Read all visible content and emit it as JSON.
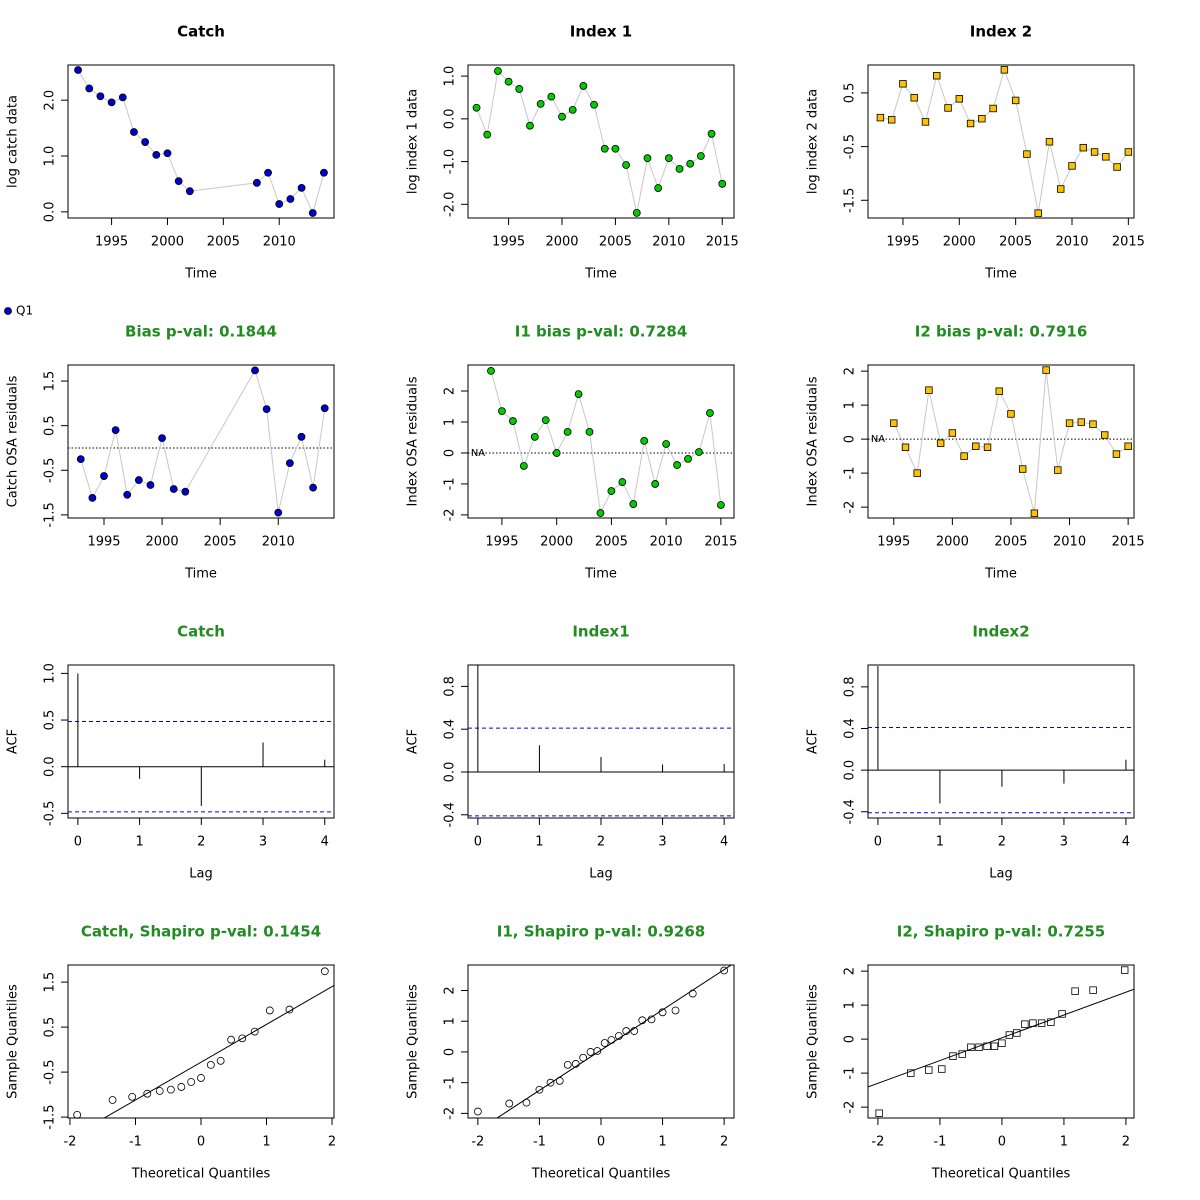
{
  "chart_data": [
    {
      "type": "line",
      "marker": "circle",
      "title": "Catch",
      "title_color": "#000000",
      "x_label": "Time",
      "y_label": "log catch data",
      "x": [
        1992,
        1993,
        1994,
        1995,
        1996,
        1997,
        1998,
        1999,
        2000,
        2001,
        2002,
        2008,
        2009,
        2010,
        2011,
        2012,
        2013,
        2014
      ],
      "series": [
        {
          "name": "Q1",
          "color": "#0000cd",
          "values": [
            2.54,
            2.21,
            2.07,
            1.96,
            2.05,
            1.43,
            1.25,
            1.02,
            1.05,
            0.55,
            0.37,
            0.52,
            0.7,
            0.14,
            0.23,
            0.43,
            -0.02,
            0.7
          ]
        }
      ],
      "xlim": [
        1991.1,
        2014.9
      ],
      "xticks": [
        1995,
        2000,
        2005,
        2010
      ],
      "ylim": [
        -0.11,
        2.63
      ],
      "yticks": [
        {
          "value": 0,
          "label": "0.0"
        },
        {
          "value": 1,
          "label": "1.0"
        },
        {
          "value": 2,
          "label": "2.0"
        }
      ]
    },
    {
      "type": "line",
      "marker": "circle",
      "title": "Index 1",
      "title_color": "#000000",
      "x_label": "Time",
      "y_label": "log index 1 data",
      "x": [
        1992,
        1993,
        1994,
        1995,
        1996,
        1997,
        1998,
        1999,
        2000,
        2001,
        2002,
        2003,
        2004,
        2005,
        2006,
        2007,
        2008,
        2009,
        2010,
        2011,
        2012,
        2013,
        2014,
        2015
      ],
      "color": "#00cd00",
      "values": [
        0.26,
        -0.37,
        1.12,
        0.87,
        0.7,
        -0.16,
        0.35,
        0.52,
        0.05,
        0.21,
        0.77,
        0.33,
        -0.7,
        -0.7,
        -1.08,
        -2.2,
        -0.92,
        -1.62,
        -0.92,
        -1.17,
        -1.05,
        -0.87,
        -0.35,
        -1.52
      ],
      "xlim": [
        1991.2,
        2016.1
      ],
      "xticks": [
        1995,
        2000,
        2005,
        2010,
        2015
      ],
      "ylim": [
        -2.32,
        1.26
      ],
      "yticks": [
        {
          "value": 1,
          "label": "1.0"
        },
        {
          "value": 0,
          "label": "0.0"
        },
        {
          "value": -1,
          "label": "-1.0"
        },
        {
          "value": -2,
          "label": "-2.0"
        }
      ]
    },
    {
      "type": "line",
      "marker": "square",
      "title": "Index 2",
      "title_color": "#000000",
      "x_label": "Time",
      "y_label": "log index 2 data",
      "x": [
        1993,
        1994,
        1995,
        1996,
        1997,
        1998,
        1999,
        2000,
        2001,
        2002,
        2003,
        2004,
        2005,
        2006,
        2007,
        2008,
        2009,
        2010,
        2011,
        2012,
        2013,
        2014,
        2015
      ],
      "color": "#ffc200",
      "values": [
        0.04,
        0,
        0.67,
        0.41,
        -0.04,
        0.82,
        0.22,
        0.39,
        -0.07,
        0.02,
        0.21,
        0.93,
        0.36,
        -0.64,
        -1.74,
        -0.41,
        -1.29,
        -0.86,
        -0.52,
        -0.6,
        -0.69,
        -0.88,
        -0.6
      ],
      "xlim": [
        1991.9,
        2015.5
      ],
      "xticks": [
        1995,
        2000,
        2005,
        2010,
        2015
      ],
      "ylim": [
        -1.83,
        1.02
      ],
      "yticks": [
        0.5,
        -0.5,
        -1.5
      ]
    },
    {
      "type": "line",
      "marker": "circle",
      "zero_line": true,
      "title": "Bias p-val: 0.1844",
      "title_color": "#228b22",
      "x_label": "Time",
      "y_label": "Catch OSA residuals",
      "x": [
        1993,
        1994,
        1995,
        1996,
        1997,
        1998,
        1999,
        2000,
        2001,
        2002,
        2008,
        2009,
        2010,
        2011,
        2012,
        2013,
        2014
      ],
      "color": "#0000cd",
      "values": [
        -0.25,
        -1.12,
        -0.63,
        0.4,
        -1.05,
        -0.72,
        -0.83,
        0.22,
        -0.92,
        -0.98,
        1.74,
        0.87,
        -1.45,
        -0.34,
        0.25,
        -0.89,
        0.89
      ],
      "xlim": [
        1991.9,
        2014.8
      ],
      "xticks": [
        1995,
        2000,
        2005,
        2010
      ],
      "ylim": [
        -1.57,
        1.86
      ],
      "yticks": [
        1.5,
        0.5,
        -0.5,
        -1.5
      ]
    },
    {
      "type": "line",
      "marker": "circle",
      "zero_line": true,
      "annotations": [
        "NA"
      ],
      "title": "I1 bias p-val: 0.7284",
      "title_color": "#228b22",
      "x_label": "Time",
      "y_label": "Index OSA residuals",
      "x": [
        1994,
        1995,
        1996,
        1997,
        1998,
        1999,
        2000,
        2001,
        2002,
        2003,
        2004,
        2005,
        2006,
        2007,
        2008,
        2009,
        2010,
        2011,
        2012,
        2013,
        2014,
        2015
      ],
      "color": "#00cd00",
      "values": [
        2.65,
        1.35,
        1.03,
        -0.42,
        0.52,
        1.06,
        0,
        0.68,
        1.9,
        0.68,
        -1.94,
        -1.23,
        -0.94,
        -1.65,
        0.39,
        -1.0,
        0.29,
        -0.39,
        -0.19,
        0.03,
        1.29,
        -1.68
      ],
      "xlim": [
        1991.9,
        2016.2
      ],
      "xticks": [
        1995,
        2000,
        2005,
        2010,
        2015
      ],
      "ylim": [
        -2.1,
        2.84
      ],
      "yticks": [
        2,
        1,
        0,
        -1,
        -2
      ]
    },
    {
      "type": "line",
      "marker": "square",
      "zero_line": true,
      "annotations": [
        "NA"
      ],
      "title": "I2 bias p-val: 0.7916",
      "title_color": "#228b22",
      "x_label": "Time",
      "y_label": "Index OSA residuals",
      "x": [
        1995,
        1996,
        1997,
        1998,
        1999,
        2000,
        2001,
        2002,
        2003,
        2004,
        2005,
        2006,
        2007,
        2008,
        2009,
        2010,
        2011,
        2012,
        2013,
        2014,
        2015
      ],
      "color": "#ffc200",
      "values": [
        0.47,
        -0.24,
        -1.0,
        1.44,
        -0.12,
        0.18,
        -0.5,
        -0.21,
        -0.24,
        1.41,
        0.74,
        -0.88,
        -2.18,
        2.03,
        -0.91,
        0.47,
        0.5,
        0.44,
        0.12,
        -0.44,
        -0.21
      ],
      "xlim": [
        1992.8,
        2015.5
      ],
      "xticks": [
        1995,
        2000,
        2005,
        2010,
        2015
      ],
      "ylim": [
        -2.32,
        2.18
      ],
      "yticks": [
        2,
        1,
        0,
        -1,
        -2
      ]
    },
    {
      "type": "acf",
      "title": "Catch",
      "title_color": "#228b22",
      "x_label": "Lag",
      "y_label": "ACF",
      "x": [
        0,
        1,
        2,
        3,
        4
      ],
      "values": [
        1.0,
        -0.13,
        -0.42,
        0.26,
        0.075
      ],
      "ci": 0.485,
      "ci_color": "#0000ff",
      "xlim": [
        -0.16,
        4.15
      ],
      "xticks": [
        0,
        1,
        2,
        3,
        4
      ],
      "ylim": [
        -0.55,
        1.09
      ],
      "yticks": [
        {
          "value": 1,
          "label": "1.0"
        },
        0.5,
        {
          "value": 0,
          "label": "0.0"
        },
        -0.5
      ]
    },
    {
      "type": "acf",
      "title": "Index1",
      "title_color": "#228b22",
      "x_label": "Lag",
      "y_label": "ACF",
      "x": [
        0,
        1,
        2,
        3,
        4
      ],
      "values": [
        1.0,
        0.25,
        0.14,
        0.07,
        0.075
      ],
      "ci": 0.41,
      "ci_color": "#0000ff",
      "xlim": [
        -0.16,
        4.16
      ],
      "xticks": [
        0,
        1,
        2,
        3,
        4
      ],
      "ylim": [
        -0.43,
        1.0
      ],
      "yticks": [
        0.8,
        0.4,
        {
          "value": 0,
          "label": "0.0"
        },
        -0.4
      ]
    },
    {
      "type": "acf",
      "title": "Index2",
      "title_color": "#228b22",
      "x_label": "Lag",
      "y_label": "ACF",
      "x": [
        0,
        1,
        2,
        3,
        4
      ],
      "values": [
        1.0,
        -0.32,
        -0.16,
        -0.13,
        0.1
      ],
      "ci": 0.41,
      "ci_color": "#0000ff",
      "xlim": [
        -0.16,
        4.13
      ],
      "xticks": [
        0,
        1,
        2,
        3,
        4
      ],
      "ylim": [
        -0.46,
        1.01
      ],
      "yticks": [
        0.8,
        0.4,
        {
          "value": 0,
          "label": "0.0"
        },
        -0.4
      ]
    },
    {
      "type": "scatter",
      "marker": "circle",
      "title": "Catch, Shapiro p-val: 0.1454",
      "title_color": "#228b22",
      "x_label": "Theoretical Quantiles",
      "y_label": "Sample Quantiles",
      "x": [
        -1.89,
        -1.35,
        -1.05,
        -0.82,
        -0.63,
        -0.46,
        -0.3,
        -0.15,
        0,
        0.15,
        0.3,
        0.46,
        0.63,
        0.82,
        1.05,
        1.35,
        1.89
      ],
      "values": [
        -1.45,
        -1.12,
        -1.05,
        -0.98,
        -0.92,
        -0.89,
        -0.83,
        -0.72,
        -0.63,
        -0.34,
        -0.25,
        0.22,
        0.25,
        0.4,
        0.87,
        0.89,
        1.74
      ],
      "qqline": {
        "intercept": -0.28,
        "slope": 0.84
      },
      "xlim": [
        -2.03,
        2.03
      ],
      "xticks": [
        -2,
        -1,
        0,
        1,
        2
      ],
      "ylim": [
        -1.52,
        1.88
      ],
      "yticks": [
        1.5,
        0.5,
        -0.5,
        -1.5
      ]
    },
    {
      "type": "scatter",
      "marker": "circle",
      "title": "I1, Shapiro p-val: 0.9268",
      "title_color": "#228b22",
      "x_label": "Theoretical Quantiles",
      "y_label": "Sample Quantiles",
      "x": [
        -2.0,
        -1.49,
        -1.21,
        -1.0,
        -0.82,
        -0.67,
        -0.54,
        -0.41,
        -0.29,
        -0.17,
        -0.06,
        0.06,
        0.17,
        0.29,
        0.41,
        0.54,
        0.67,
        0.82,
        1.0,
        1.21,
        1.49,
        2.0
      ],
      "values": [
        -1.94,
        -1.68,
        -1.65,
        -1.23,
        -1.0,
        -0.94,
        -0.42,
        -0.39,
        -0.19,
        0,
        0.03,
        0.29,
        0.39,
        0.52,
        0.68,
        0.68,
        1.03,
        1.06,
        1.29,
        1.35,
        1.9,
        2.65
      ],
      "qqline": {
        "intercept": 0.06,
        "slope": 1.31
      },
      "xlim": [
        -2.16,
        2.16
      ],
      "xticks": [
        -2,
        -1,
        0,
        1,
        2
      ],
      "ylim": [
        -2.15,
        2.83
      ],
      "yticks": [
        2,
        1,
        0,
        -1,
        -2
      ]
    },
    {
      "type": "scatter",
      "marker": "square",
      "title": "I2, Shapiro p-val: 0.7255",
      "title_color": "#228b22",
      "x_label": "Theoretical Quantiles",
      "y_label": "Sample Quantiles",
      "x": [
        -1.98,
        -1.47,
        -1.18,
        -0.97,
        -0.79,
        -0.64,
        -0.5,
        -0.37,
        -0.24,
        -0.12,
        0,
        0.12,
        0.24,
        0.37,
        0.5,
        0.64,
        0.79,
        0.97,
        1.18,
        1.47,
        1.98
      ],
      "values": [
        -2.18,
        -1.0,
        -0.91,
        -0.88,
        -0.5,
        -0.44,
        -0.24,
        -0.24,
        -0.21,
        -0.21,
        -0.12,
        0.12,
        0.18,
        0.44,
        0.47,
        0.47,
        0.5,
        0.74,
        1.41,
        1.44,
        2.03
      ],
      "qqline": {
        "intercept": 0.04,
        "slope": 0.67
      },
      "xlim": [
        -2.16,
        2.13
      ],
      "xticks": [
        -2,
        -1,
        0,
        1,
        2
      ],
      "ylim": [
        -2.32,
        2.18
      ],
      "yticks": [
        2,
        1,
        0,
        -1,
        -2
      ]
    }
  ]
}
